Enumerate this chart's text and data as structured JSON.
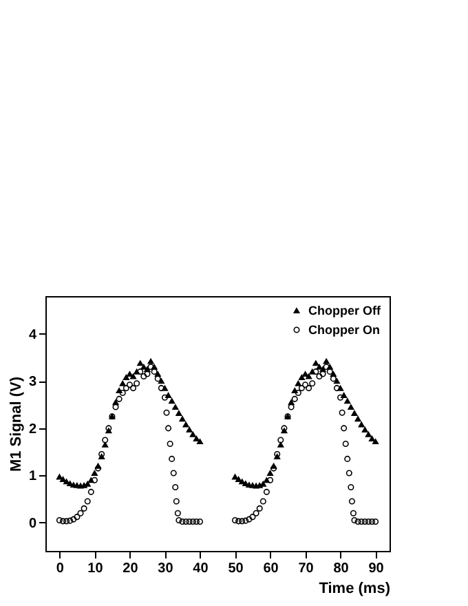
{
  "chart_data": {
    "type": "scatter",
    "xlabel": "Time (ms)",
    "ylabel": "M1 Signal (V)",
    "xlim": [
      -4,
      94
    ],
    "ylim": [
      -0.6,
      4.8
    ],
    "xticks": [
      0,
      10,
      20,
      30,
      40,
      50,
      60,
      70,
      80,
      90
    ],
    "yticks": [
      0,
      1,
      2,
      3,
      4
    ],
    "grid": false,
    "legend": "top right",
    "series": [
      {
        "name": "Chopper Off",
        "color": "#000000",
        "marker": "triangle",
        "x": [
          0,
          1,
          2,
          3,
          4,
          5,
          6,
          7,
          8,
          9,
          10,
          11,
          12,
          13,
          14,
          15,
          16,
          17,
          18,
          19,
          20,
          21,
          22,
          23,
          24,
          25,
          26,
          27,
          28,
          29,
          30,
          31,
          32,
          33,
          34,
          35,
          36,
          37,
          38,
          39,
          40,
          50,
          51,
          52,
          53,
          54,
          55,
          56,
          57,
          58,
          59,
          60,
          61,
          62,
          63,
          64,
          65,
          66,
          67,
          68,
          69,
          70,
          71,
          72,
          73,
          74,
          75,
          76,
          77,
          78,
          79,
          80,
          81,
          82,
          83,
          84,
          85,
          86,
          87,
          88,
          89,
          90
        ],
        "values": [
          0.97,
          0.92,
          0.87,
          0.83,
          0.8,
          0.79,
          0.78,
          0.79,
          0.82,
          0.9,
          1.05,
          1.2,
          1.4,
          1.65,
          1.95,
          2.25,
          2.55,
          2.8,
          2.95,
          3.08,
          3.15,
          3.1,
          3.2,
          3.38,
          3.3,
          3.25,
          3.42,
          3.3,
          3.15,
          3.0,
          2.85,
          2.7,
          2.58,
          2.45,
          2.32,
          2.2,
          2.08,
          1.97,
          1.87,
          1.78,
          1.72,
          0.97,
          0.92,
          0.87,
          0.83,
          0.8,
          0.79,
          0.78,
          0.79,
          0.82,
          0.9,
          1.05,
          1.2,
          1.4,
          1.65,
          1.95,
          2.25,
          2.55,
          2.8,
          2.95,
          3.08,
          3.15,
          3.1,
          3.2,
          3.38,
          3.3,
          3.25,
          3.42,
          3.3,
          3.15,
          3.0,
          2.85,
          2.7,
          2.58,
          2.45,
          2.32,
          2.2,
          2.08,
          1.97,
          1.87,
          1.78,
          1.72
        ]
      },
      {
        "name": "Chopper On",
        "color": "#000000",
        "marker": "circle",
        "x": [
          0,
          1,
          2,
          3,
          4,
          5,
          6,
          7,
          8,
          9,
          10,
          11,
          12,
          13,
          14,
          15,
          16,
          17,
          18,
          19,
          20,
          21,
          22,
          23,
          24,
          25,
          26,
          27,
          28,
          29,
          30,
          30.5,
          31,
          31.5,
          32,
          32.5,
          33,
          33.3,
          33.7,
          34,
          35,
          36,
          37,
          38,
          39,
          40,
          50,
          51,
          52,
          53,
          54,
          55,
          56,
          57,
          58,
          59,
          60,
          61,
          62,
          63,
          64,
          65,
          66,
          67,
          68,
          69,
          70,
          71,
          72,
          73,
          74,
          75,
          76,
          77,
          78,
          79,
          80,
          80.5,
          81,
          81.5,
          82,
          82.5,
          83,
          83.3,
          83.7,
          84,
          85,
          86,
          87,
          88,
          89,
          90
        ],
        "values": [
          0.05,
          0.03,
          0.03,
          0.04,
          0.07,
          0.12,
          0.2,
          0.3,
          0.45,
          0.65,
          0.9,
          1.15,
          1.45,
          1.75,
          2.0,
          2.25,
          2.45,
          2.62,
          2.75,
          2.85,
          2.92,
          2.85,
          2.95,
          3.2,
          3.1,
          3.15,
          3.3,
          3.2,
          3.05,
          2.85,
          2.65,
          2.33,
          2.0,
          1.67,
          1.35,
          1.05,
          0.75,
          0.45,
          0.2,
          0.05,
          0.02,
          0.02,
          0.02,
          0.02,
          0.02,
          0.02,
          0.05,
          0.03,
          0.03,
          0.04,
          0.07,
          0.12,
          0.2,
          0.3,
          0.45,
          0.65,
          0.9,
          1.15,
          1.45,
          1.75,
          2.0,
          2.25,
          2.45,
          2.62,
          2.75,
          2.85,
          2.92,
          2.85,
          2.95,
          3.2,
          3.1,
          3.15,
          3.3,
          3.2,
          3.05,
          2.85,
          2.65,
          2.33,
          2.0,
          1.67,
          1.35,
          1.05,
          0.75,
          0.45,
          0.2,
          0.05,
          0.02,
          0.02,
          0.02,
          0.02,
          0.02,
          0.02
        ]
      }
    ]
  }
}
